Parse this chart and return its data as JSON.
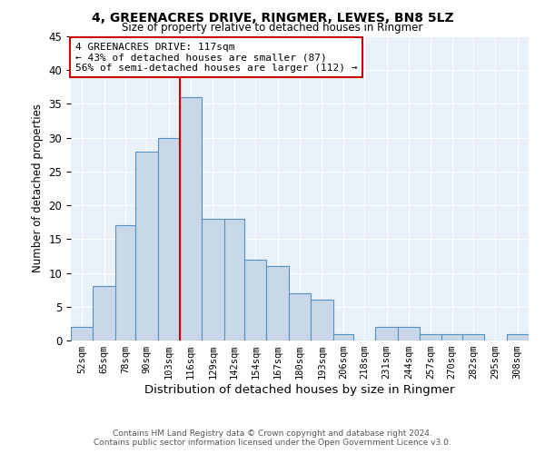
{
  "title1": "4, GREENACRES DRIVE, RINGMER, LEWES, BN8 5LZ",
  "title2": "Size of property relative to detached houses in Ringmer",
  "xlabel": "Distribution of detached houses by size in Ringmer",
  "ylabel": "Number of detached properties",
  "bin_labels": [
    "52sqm",
    "65sqm",
    "78sqm",
    "90sqm",
    "103sqm",
    "116sqm",
    "129sqm",
    "142sqm",
    "154sqm",
    "167sqm",
    "180sqm",
    "193sqm",
    "206sqm",
    "218sqm",
    "231sqm",
    "244sqm",
    "257sqm",
    "270sqm",
    "282sqm",
    "295sqm",
    "308sqm"
  ],
  "bin_edges": [
    52,
    65,
    78,
    90,
    103,
    116,
    129,
    142,
    154,
    167,
    180,
    193,
    206,
    218,
    231,
    244,
    257,
    270,
    282,
    295,
    308,
    321
  ],
  "values": [
    2,
    8,
    17,
    28,
    30,
    36,
    18,
    18,
    12,
    11,
    7,
    6,
    1,
    0,
    2,
    2,
    1,
    1,
    1,
    0,
    1
  ],
  "bar_color": "#c8d8e8",
  "bar_edge_color": "#5590c0",
  "vline_x": 116,
  "vline_color": "#cc0000",
  "annotation_text": "4 GREENACRES DRIVE: 117sqm\n← 43% of detached houses are smaller (87)\n56% of semi-detached houses are larger (112) →",
  "annotation_box_color": "#ffffff",
  "annotation_box_edge": "#cc0000",
  "ylim": [
    0,
    45
  ],
  "yticks": [
    0,
    5,
    10,
    15,
    20,
    25,
    30,
    35,
    40,
    45
  ],
  "bg_color": "#e8f0f8",
  "grid_color": "#ffffff",
  "footer1": "Contains HM Land Registry data © Crown copyright and database right 2024.",
  "footer2": "Contains public sector information licensed under the Open Government Licence v3.0."
}
